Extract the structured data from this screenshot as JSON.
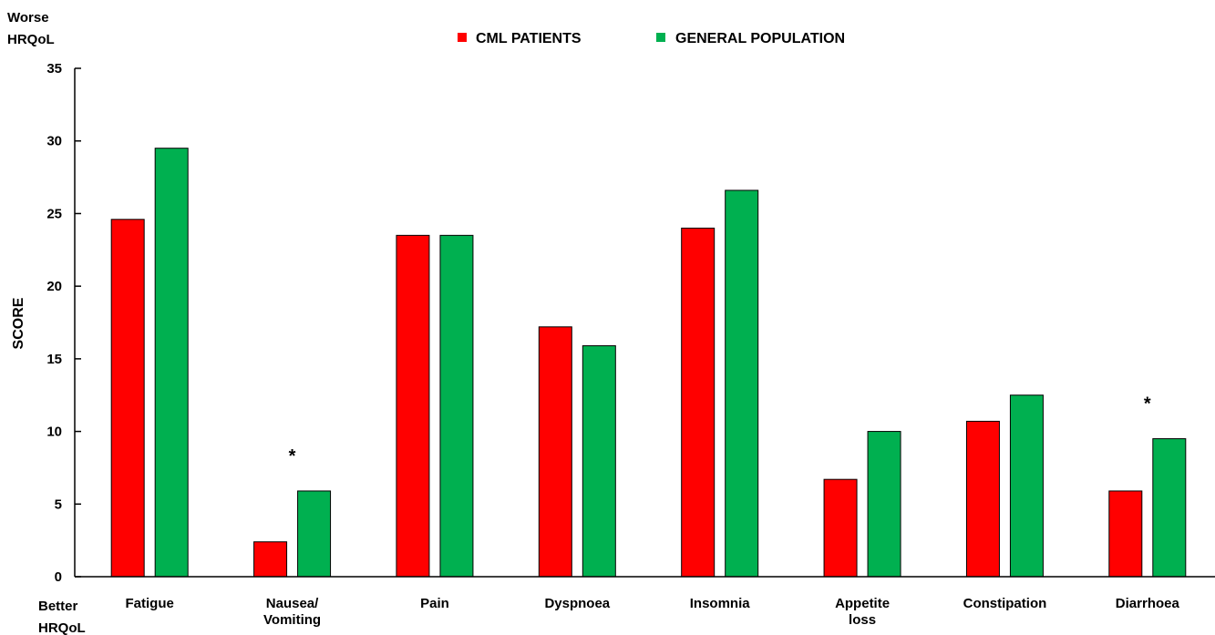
{
  "chart_data": {
    "type": "bar",
    "ylabel": "SCORE",
    "top_note": [
      "Worse",
      "HRQoL"
    ],
    "bottom_note": [
      "Better",
      "HRQoL"
    ],
    "ylim": [
      0,
      35
    ],
    "yticks": [
      0,
      5,
      10,
      15,
      20,
      25,
      30,
      35
    ],
    "grid": false,
    "legend_position": "top",
    "categories": [
      [
        "Fatigue"
      ],
      [
        "Nausea/",
        "Vomiting"
      ],
      [
        "Pain"
      ],
      [
        "Dyspnoea"
      ],
      [
        "Insomnia"
      ],
      [
        "Appetite",
        "loss"
      ],
      [
        "Constipation"
      ],
      [
        "Diarrhoea"
      ]
    ],
    "series": [
      {
        "name": "CML PATIENTS",
        "color": "#ff0000",
        "values": [
          24.6,
          2.4,
          23.5,
          17.2,
          24.0,
          6.7,
          10.7,
          5.9
        ]
      },
      {
        "name": "GENERAL POPULATION",
        "color": "#00b050",
        "values": [
          29.5,
          5.9,
          23.5,
          15.9,
          26.6,
          10.0,
          12.5,
          9.5
        ]
      }
    ],
    "annotations": [
      {
        "category_index": 1,
        "text": "*"
      },
      {
        "category_index": 7,
        "text": "*"
      }
    ]
  }
}
